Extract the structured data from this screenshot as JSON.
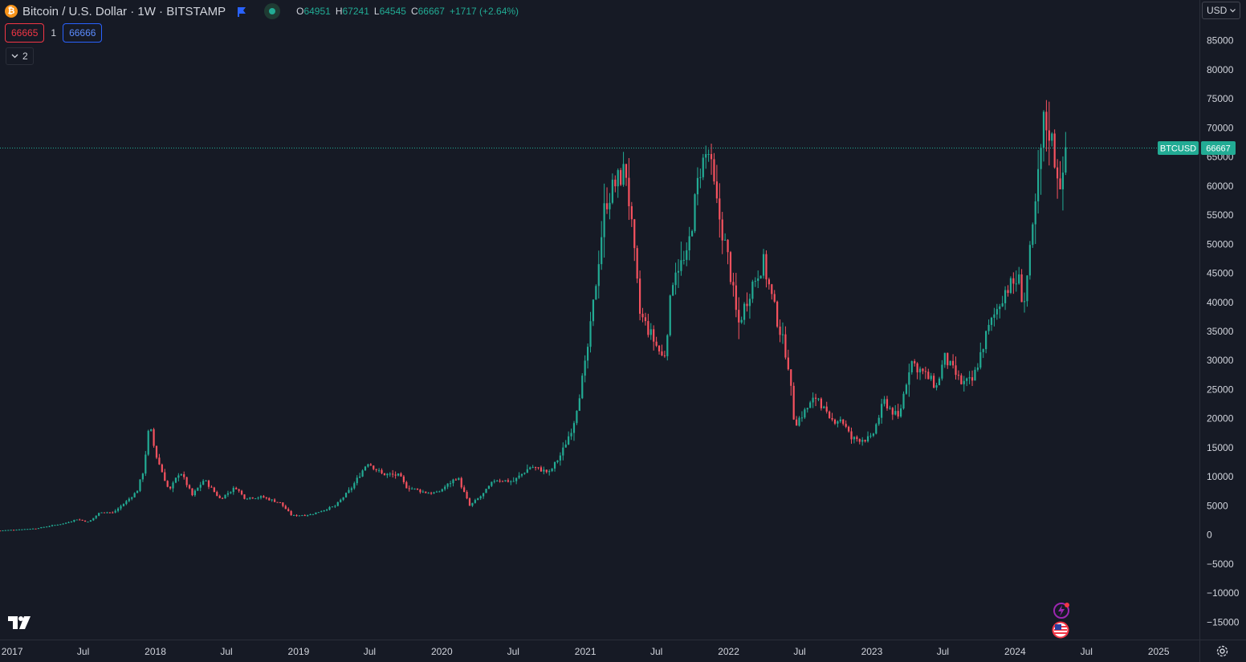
{
  "header": {
    "symbol_title": "Bitcoin / U.S. Dollar · 1W · BITSTAMP",
    "logo_glyph": "₿",
    "ohlc": {
      "o_key": "O",
      "o_val": "64951",
      "h_key": "H",
      "h_val": "67241",
      "l_key": "L",
      "l_val": "64545",
      "c_key": "C",
      "c_val": "66667",
      "change": "+1717 (+2.64%)"
    }
  },
  "trade": {
    "sell_price": "66665",
    "spread": "1",
    "buy_price": "66666"
  },
  "indicators_toggle": {
    "count": "2"
  },
  "currency": {
    "label": "USD"
  },
  "last_price_label": {
    "symbol": "BTCUSD",
    "price": "66667"
  },
  "colors": {
    "up": "#22ab94",
    "down": "#f7525f",
    "background": "#161a25",
    "grid": "#2a2e39",
    "axis_text": "#d1d4dc"
  },
  "chart_data": {
    "type": "candlestick",
    "title": "Bitcoin / U.S. Dollar · 1W · BITSTAMP",
    "xlabel": "",
    "ylabel": "",
    "ylim": [
      -18000,
      92000
    ],
    "xlim": [
      "2016-12-01",
      "2025-04-15"
    ],
    "grid": false,
    "y_ticks": [
      85000,
      80000,
      75000,
      70000,
      65000,
      60000,
      55000,
      50000,
      45000,
      40000,
      35000,
      30000,
      25000,
      20000,
      15000,
      10000,
      5000,
      0,
      -5000,
      -10000,
      -15000
    ],
    "x_ticks": [
      {
        "date": "2017-01-01",
        "label": "2017"
      },
      {
        "date": "2017-07-01",
        "label": "Jul"
      },
      {
        "date": "2018-01-01",
        "label": "2018"
      },
      {
        "date": "2018-07-01",
        "label": "Jul"
      },
      {
        "date": "2019-01-01",
        "label": "2019"
      },
      {
        "date": "2019-07-01",
        "label": "Jul"
      },
      {
        "date": "2020-01-01",
        "label": "2020"
      },
      {
        "date": "2020-07-01",
        "label": "Jul"
      },
      {
        "date": "2021-01-01",
        "label": "2021"
      },
      {
        "date": "2021-07-01",
        "label": "Jul"
      },
      {
        "date": "2022-01-01",
        "label": "2022"
      },
      {
        "date": "2022-07-01",
        "label": "Jul"
      },
      {
        "date": "2023-01-01",
        "label": "2023"
      },
      {
        "date": "2023-07-01",
        "label": "Jul"
      },
      {
        "date": "2024-01-01",
        "label": "2024"
      },
      {
        "date": "2024-07-01",
        "label": "Jul"
      },
      {
        "date": "2025-01-01",
        "label": "2025"
      }
    ],
    "last_price": 66667,
    "series": [
      {
        "name": "BTCUSD",
        "close_points": [
          [
            "2016-12-01",
            750
          ],
          [
            "2017-03-01",
            1100
          ],
          [
            "2017-05-15",
            2000
          ],
          [
            "2017-06-15",
            2700
          ],
          [
            "2017-07-15",
            2200
          ],
          [
            "2017-08-15",
            4000
          ],
          [
            "2017-09-15",
            3800
          ],
          [
            "2017-10-15",
            5500
          ],
          [
            "2017-11-15",
            7500
          ],
          [
            "2017-12-01",
            11000
          ],
          [
            "2017-12-17",
            19000
          ],
          [
            "2018-01-01",
            14000
          ],
          [
            "2018-02-05",
            7500
          ],
          [
            "2018-03-05",
            11000
          ],
          [
            "2018-04-05",
            6800
          ],
          [
            "2018-05-05",
            9500
          ],
          [
            "2018-06-15",
            6200
          ],
          [
            "2018-07-25",
            8200
          ],
          [
            "2018-08-15",
            6400
          ],
          [
            "2018-10-01",
            6500
          ],
          [
            "2018-11-15",
            5500
          ],
          [
            "2018-12-15",
            3300
          ],
          [
            "2019-02-01",
            3500
          ],
          [
            "2019-04-05",
            5000
          ],
          [
            "2019-05-15",
            8000
          ],
          [
            "2019-06-26",
            12500
          ],
          [
            "2019-08-01",
            10500
          ],
          [
            "2019-09-15",
            10200
          ],
          [
            "2019-10-01",
            8300
          ],
          [
            "2019-11-20",
            7300
          ],
          [
            "2019-12-20",
            7200
          ],
          [
            "2020-02-10",
            10000
          ],
          [
            "2020-03-12",
            5000
          ],
          [
            "2020-04-15",
            7000
          ],
          [
            "2020-05-15",
            9500
          ],
          [
            "2020-07-01",
            9200
          ],
          [
            "2020-08-15",
            11800
          ],
          [
            "2020-10-01",
            10700
          ],
          [
            "2020-11-01",
            14000
          ],
          [
            "2020-12-01",
            19000
          ],
          [
            "2020-12-31",
            29000
          ],
          [
            "2021-01-15",
            36000
          ],
          [
            "2021-02-20",
            57000
          ],
          [
            "2021-03-15",
            60000
          ],
          [
            "2021-04-14",
            63000
          ],
          [
            "2021-05-20",
            38000
          ],
          [
            "2021-06-20",
            34000
          ],
          [
            "2021-07-20",
            30000
          ],
          [
            "2021-08-15",
            46000
          ],
          [
            "2021-09-15",
            47000
          ],
          [
            "2021-10-20",
            63000
          ],
          [
            "2021-11-10",
            66000
          ],
          [
            "2021-12-01",
            57000
          ],
          [
            "2022-01-01",
            47000
          ],
          [
            "2022-01-25",
            36000
          ],
          [
            "2022-03-01",
            43000
          ],
          [
            "2022-03-30",
            47000
          ],
          [
            "2022-05-01",
            38000
          ],
          [
            "2022-06-01",
            30000
          ],
          [
            "2022-06-18",
            19000
          ],
          [
            "2022-08-15",
            24000
          ],
          [
            "2022-09-15",
            19500
          ],
          [
            "2022-10-15",
            20000
          ],
          [
            "2022-11-10",
            16500
          ],
          [
            "2022-12-31",
            16500
          ],
          [
            "2023-02-01",
            23000
          ],
          [
            "2023-03-10",
            20000
          ],
          [
            "2023-04-10",
            30000
          ],
          [
            "2023-06-15",
            25500
          ],
          [
            "2023-07-05",
            30500
          ],
          [
            "2023-08-18",
            26000
          ],
          [
            "2023-09-15",
            26500
          ],
          [
            "2023-10-20",
            34500
          ],
          [
            "2023-12-05",
            42000
          ],
          [
            "2024-01-10",
            44000
          ],
          [
            "2024-01-23",
            39500
          ],
          [
            "2024-02-15",
            52000
          ],
          [
            "2024-03-01",
            62000
          ],
          [
            "2024-03-14",
            71000
          ],
          [
            "2024-04-01",
            69000
          ],
          [
            "2024-04-15",
            63000
          ],
          [
            "2024-05-01",
            60000
          ],
          [
            "2024-05-14",
            66667
          ]
        ]
      }
    ]
  }
}
